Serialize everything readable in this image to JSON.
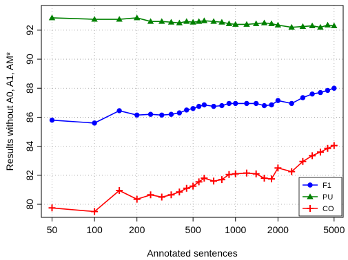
{
  "chart_data": {
    "type": "line",
    "title": "",
    "xlabel": "Annotated sentences",
    "ylabel": "Results without A0, A1, AM*",
    "x_scale": "log",
    "xlim": [
      42,
      5800
    ],
    "ylim": [
      79.1,
      93.7
    ],
    "x_ticks": [
      50,
      100,
      200,
      500,
      1000,
      2000,
      5000
    ],
    "x_tick_labels": [
      "50",
      "100",
      "200",
      "500",
      "1000",
      "2000",
      "5000"
    ],
    "y_ticks": [
      80,
      82,
      84,
      86,
      88,
      90,
      92
    ],
    "y_tick_labels": [
      "80",
      "82",
      "84",
      "86",
      "88",
      "90",
      "92"
    ],
    "grid": true,
    "legend_position": "bottom-right",
    "x": [
      50,
      100,
      150,
      200,
      250,
      300,
      350,
      400,
      450,
      500,
      550,
      600,
      700,
      800,
      900,
      1000,
      1200,
      1400,
      1600,
      1800,
      2000,
      2500,
      3000,
      3500,
      4000,
      4500,
      5000
    ],
    "series": [
      {
        "name": "F1",
        "color": "#0000ff",
        "marker": "circle",
        "values": [
          85.8,
          85.6,
          86.45,
          86.15,
          86.2,
          86.15,
          86.2,
          86.3,
          86.5,
          86.6,
          86.75,
          86.85,
          86.75,
          86.8,
          86.95,
          86.95,
          86.95,
          86.95,
          86.8,
          86.85,
          87.15,
          86.95,
          87.35,
          87.6,
          87.7,
          87.85,
          88.0
        ]
      },
      {
        "name": "PU",
        "color": "#008000",
        "marker": "triangle",
        "values": [
          92.85,
          92.75,
          92.75,
          92.85,
          92.6,
          92.6,
          92.55,
          92.5,
          92.6,
          92.55,
          92.6,
          92.65,
          92.6,
          92.55,
          92.45,
          92.4,
          92.4,
          92.45,
          92.5,
          92.45,
          92.35,
          92.2,
          92.25,
          92.3,
          92.2,
          92.35,
          92.3
        ]
      },
      {
        "name": "CO",
        "color": "#ff0000",
        "marker": "plus",
        "values": [
          79.75,
          79.5,
          80.95,
          80.35,
          80.65,
          80.5,
          80.65,
          80.85,
          81.1,
          81.25,
          81.55,
          81.8,
          81.6,
          81.7,
          82.05,
          82.1,
          82.15,
          82.1,
          81.8,
          81.75,
          82.5,
          82.25,
          82.95,
          83.35,
          83.6,
          83.85,
          84.05
        ]
      }
    ]
  }
}
